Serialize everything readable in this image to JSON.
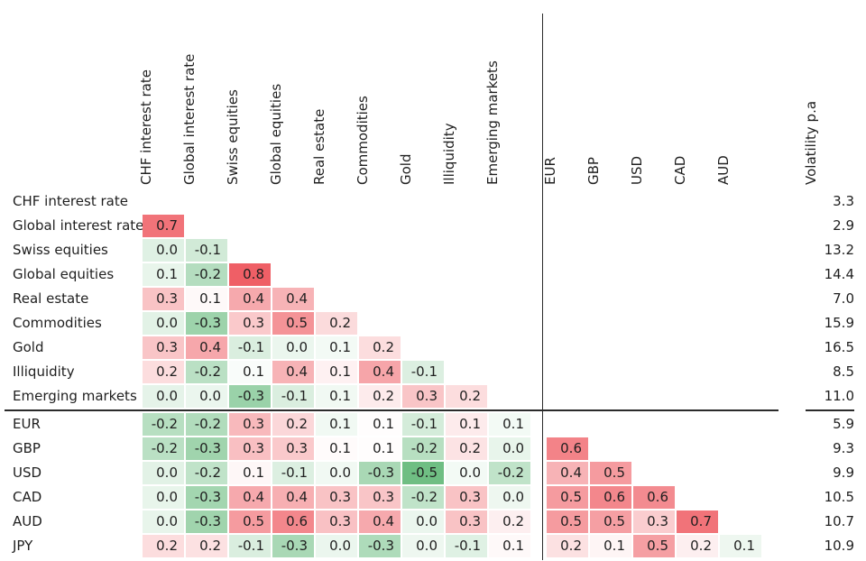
{
  "chart_data": {
    "type": "heatmap",
    "description": "Lower-triangular correlation matrix of asset classes and currencies with annual volatility column",
    "volatility_header": "Volatility p.a",
    "legend_position": "none",
    "grid": false,
    "color_scale": {
      "positive_full": "#ef5f65",
      "negative_full": "#0a912d",
      "neutral": "#ffffff",
      "scale_max": 0.85
    },
    "columns": [
      "CHF interest rate",
      "Global interest rate",
      "Swiss equities",
      "Global equities",
      "Real estate",
      "Commodities",
      "Gold",
      "Illiquidity",
      "Emerging markets",
      "EUR",
      "GBP",
      "USD",
      "CAD",
      "AUD"
    ],
    "column_group_separator_after": "Emerging markets",
    "row_group_separator_after": "Emerging markets",
    "rows": [
      {
        "label": "CHF interest rate",
        "volatility": "3.3",
        "cells": []
      },
      {
        "label": "Global interest rate",
        "volatility": "2.9",
        "cells": [
          {
            "v": "0.7",
            "c": 0.7
          }
        ]
      },
      {
        "label": "Swiss equities",
        "volatility": "13.2",
        "cells": [
          {
            "v": "0.0",
            "c": -0.11
          },
          {
            "v": "-0.1",
            "c": -0.16
          }
        ]
      },
      {
        "label": "Global equities",
        "volatility": "14.4",
        "cells": [
          {
            "v": "0.1",
            "c": -0.08
          },
          {
            "v": "-0.2",
            "c": -0.26
          },
          {
            "v": "0.8",
            "c": 0.8
          }
        ]
      },
      {
        "label": "Real estate",
        "volatility": "7.0",
        "cells": [
          {
            "v": "0.3",
            "c": 0.3
          },
          {
            "v": "0.1",
            "c": 0.03
          },
          {
            "v": "0.4",
            "c": 0.43
          },
          {
            "v": "0.4",
            "c": 0.38
          }
        ]
      },
      {
        "label": "Commodities",
        "volatility": "15.9",
        "cells": [
          {
            "v": "0.0",
            "c": -0.1
          },
          {
            "v": "-0.3",
            "c": -0.34
          },
          {
            "v": "0.3",
            "c": 0.27
          },
          {
            "v": "0.5",
            "c": 0.54
          },
          {
            "v": "0.2",
            "c": 0.18
          }
        ]
      },
      {
        "label": "Gold",
        "volatility": "16.5",
        "cells": [
          {
            "v": "0.3",
            "c": 0.29
          },
          {
            "v": "0.4",
            "c": 0.44
          },
          {
            "v": "-0.1",
            "c": -0.13
          },
          {
            "v": "0.0",
            "c": -0.07
          },
          {
            "v": "0.1",
            "c": -0.04
          },
          {
            "v": "0.2",
            "c": 0.17
          }
        ]
      },
      {
        "label": "Illiquidity",
        "volatility": "8.5",
        "cells": [
          {
            "v": "0.2",
            "c": 0.17
          },
          {
            "v": "-0.2",
            "c": -0.24
          },
          {
            "v": "0.1",
            "c": -0.02
          },
          {
            "v": "0.4",
            "c": 0.38
          },
          {
            "v": "0.1",
            "c": 0.07
          },
          {
            "v": "0.4",
            "c": 0.45
          },
          {
            "v": "-0.1",
            "c": -0.12
          }
        ]
      },
      {
        "label": "Emerging markets",
        "volatility": "11.0",
        "cells": [
          {
            "v": "0.0",
            "c": -0.09
          },
          {
            "v": "0.0",
            "c": -0.07
          },
          {
            "v": "-0.3",
            "c": -0.35
          },
          {
            "v": "-0.1",
            "c": -0.13
          },
          {
            "v": "0.1",
            "c": -0.05
          },
          {
            "v": "0.2",
            "c": 0.1
          },
          {
            "v": "0.3",
            "c": 0.29
          },
          {
            "v": "0.2",
            "c": 0.17
          }
        ]
      },
      {
        "label": "EUR",
        "volatility": "5.9",
        "cells": [
          {
            "v": "-0.2",
            "c": -0.25
          },
          {
            "v": "-0.2",
            "c": -0.27
          },
          {
            "v": "0.3",
            "c": 0.35
          },
          {
            "v": "0.2",
            "c": 0.2
          },
          {
            "v": "0.1",
            "c": -0.05
          },
          {
            "v": "0.1",
            "c": 0.01
          },
          {
            "v": "-0.1",
            "c": -0.15
          },
          {
            "v": "0.1",
            "c": 0.1
          },
          {
            "v": "0.1",
            "c": -0.04
          }
        ]
      },
      {
        "label": "GBP",
        "volatility": "9.3",
        "cells": [
          {
            "v": "-0.2",
            "c": -0.24
          },
          {
            "v": "-0.3",
            "c": -0.33
          },
          {
            "v": "0.3",
            "c": 0.32
          },
          {
            "v": "0.3",
            "c": 0.27
          },
          {
            "v": "0.1",
            "c": 0.02
          },
          {
            "v": "0.1",
            "c": 0.01
          },
          {
            "v": "-0.2",
            "c": -0.25
          },
          {
            "v": "0.2",
            "c": 0.14
          },
          {
            "v": "0.0",
            "c": -0.08
          },
          {
            "v": "0.6",
            "c": 0.62
          }
        ]
      },
      {
        "label": "USD",
        "volatility": "9.9",
        "cells": [
          {
            "v": "0.0",
            "c": -0.1
          },
          {
            "v": "-0.2",
            "c": -0.22
          },
          {
            "v": "0.1",
            "c": 0.04
          },
          {
            "v": "-0.1",
            "c": -0.12
          },
          {
            "v": "0.0",
            "c": -0.05
          },
          {
            "v": "-0.3",
            "c": -0.3
          },
          {
            "v": "-0.5",
            "c": -0.5
          },
          {
            "v": "0.0",
            "c": -0.04
          },
          {
            "v": "-0.2",
            "c": -0.22
          },
          {
            "v": "0.4",
            "c": 0.38
          },
          {
            "v": "0.5",
            "c": 0.5
          }
        ]
      },
      {
        "label": "CAD",
        "volatility": "10.5",
        "cells": [
          {
            "v": "0.0",
            "c": -0.08
          },
          {
            "v": "-0.3",
            "c": -0.32
          },
          {
            "v": "0.4",
            "c": 0.43
          },
          {
            "v": "0.4",
            "c": 0.4
          },
          {
            "v": "0.3",
            "c": 0.3
          },
          {
            "v": "0.3",
            "c": 0.29
          },
          {
            "v": "-0.2",
            "c": -0.22
          },
          {
            "v": "0.3",
            "c": 0.3
          },
          {
            "v": "0.0",
            "c": -0.06
          },
          {
            "v": "0.5",
            "c": 0.5
          },
          {
            "v": "0.6",
            "c": 0.6
          },
          {
            "v": "0.6",
            "c": 0.58
          }
        ]
      },
      {
        "label": "AUD",
        "volatility": "10.7",
        "cells": [
          {
            "v": "0.0",
            "c": -0.08
          },
          {
            "v": "-0.3",
            "c": -0.33
          },
          {
            "v": "0.5",
            "c": 0.5
          },
          {
            "v": "0.6",
            "c": 0.6
          },
          {
            "v": "0.3",
            "c": 0.31
          },
          {
            "v": "0.4",
            "c": 0.43
          },
          {
            "v": "0.0",
            "c": -0.07
          },
          {
            "v": "0.3",
            "c": 0.3
          },
          {
            "v": "0.2",
            "c": 0.08
          },
          {
            "v": "0.5",
            "c": 0.5
          },
          {
            "v": "0.5",
            "c": 0.48
          },
          {
            "v": "0.3",
            "c": 0.25
          },
          {
            "v": "0.7",
            "c": 0.7
          }
        ]
      },
      {
        "label": "JPY",
        "volatility": "10.9",
        "cells": [
          {
            "v": "0.2",
            "c": 0.17
          },
          {
            "v": "0.2",
            "c": 0.15
          },
          {
            "v": "-0.1",
            "c": -0.13
          },
          {
            "v": "-0.3",
            "c": -0.3
          },
          {
            "v": "0.0",
            "c": -0.07
          },
          {
            "v": "-0.3",
            "c": -0.28
          },
          {
            "v": "0.0",
            "c": -0.06
          },
          {
            "v": "-0.1",
            "c": -0.11
          },
          {
            "v": "0.1",
            "c": 0.03
          },
          {
            "v": "0.2",
            "c": 0.15
          },
          {
            "v": "0.1",
            "c": 0.05
          },
          {
            "v": "0.5",
            "c": 0.48
          },
          {
            "v": "0.2",
            "c": 0.08
          },
          {
            "v": "0.1",
            "c": -0.06
          }
        ]
      }
    ]
  }
}
